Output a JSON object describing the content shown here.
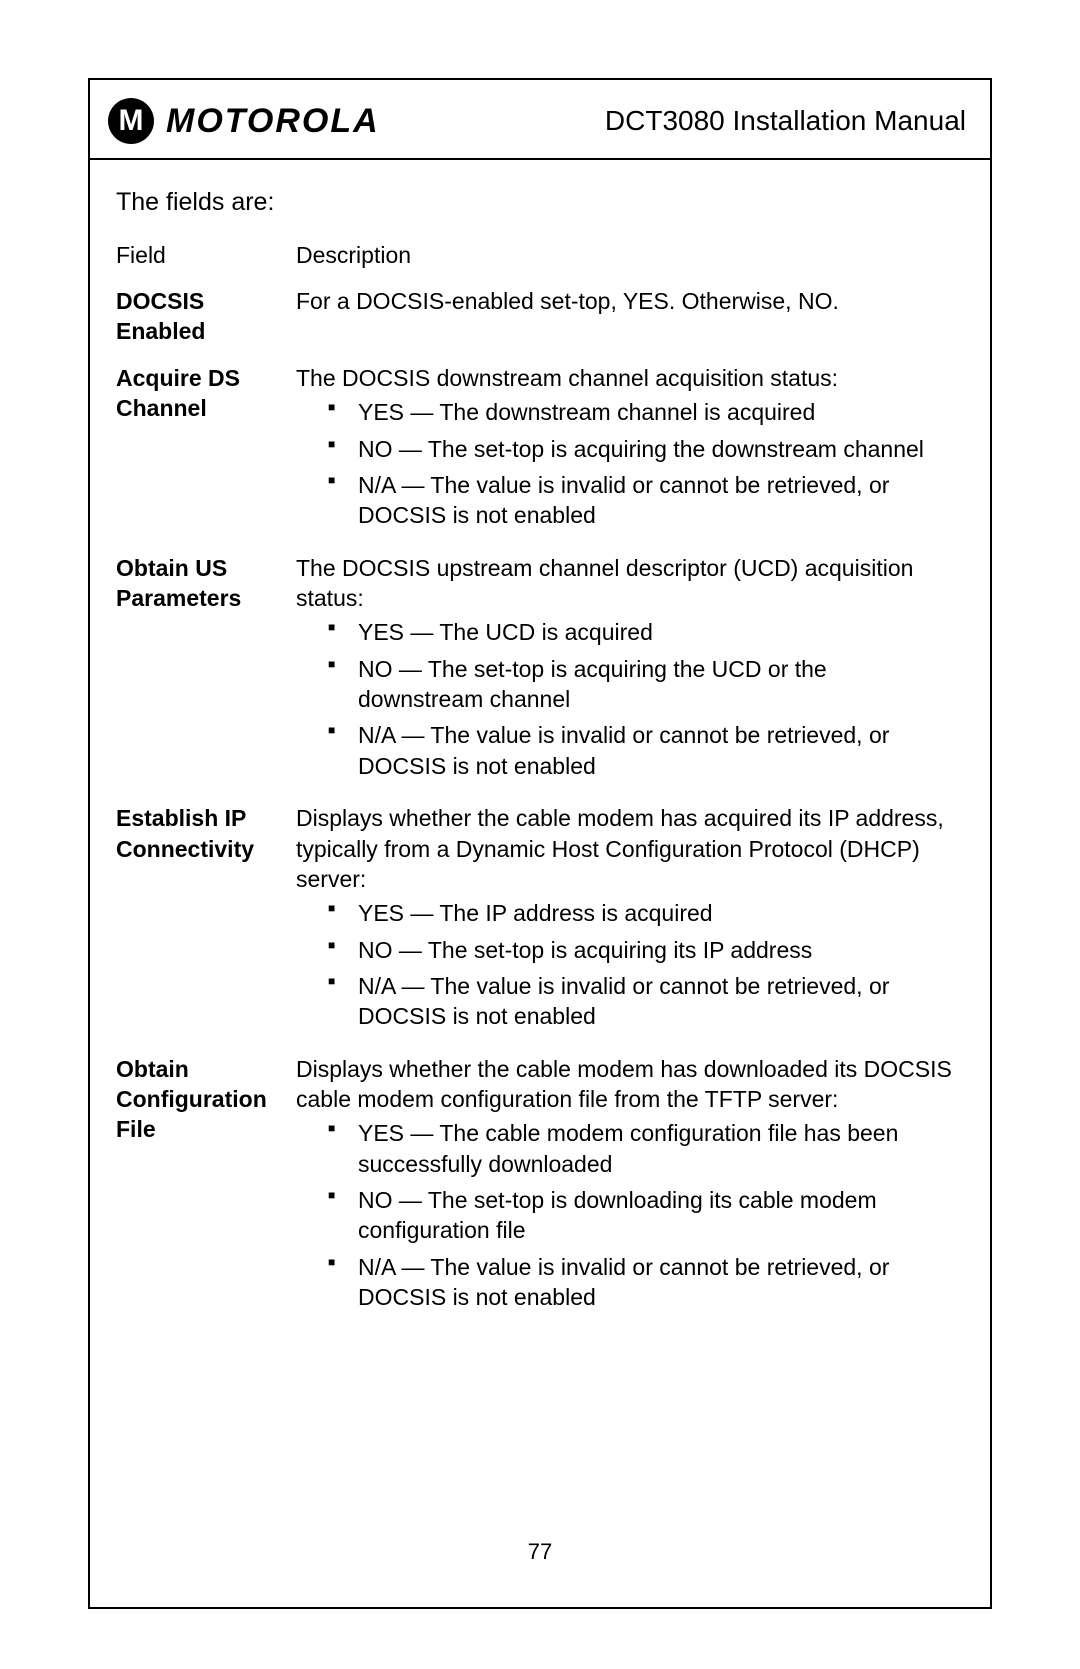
{
  "header": {
    "brand": "MOTOROLA",
    "logo_glyph": "M",
    "doc_title": "DCT3080 Installation Manual"
  },
  "intro": "The fields are:",
  "columns": {
    "field": "Field",
    "description": "Description"
  },
  "rows": [
    {
      "field": "DOCSIS Enabled",
      "desc": "For a DOCSIS-enabled set-top, YES. Otherwise, NO.",
      "bullets": []
    },
    {
      "field": "Acquire DS Channel",
      "desc": "The DOCSIS downstream channel acquisition status:",
      "bullets": [
        "YES — The downstream channel is acquired",
        "NO — The set-top is acquiring the downstream channel",
        "N/A — The value is invalid or cannot be retrieved, or DOCSIS is not enabled"
      ]
    },
    {
      "field": "Obtain US Parameters",
      "desc": "The DOCSIS upstream channel descriptor (UCD) acquisition status:",
      "bullets": [
        "YES — The UCD is acquired",
        "NO — The set-top is acquiring the UCD or the downstream channel",
        "N/A — The value is invalid or cannot be retrieved, or DOCSIS is not enabled"
      ]
    },
    {
      "field": "Establish IP Connectivity",
      "desc": "Displays whether the cable modem has acquired its IP address, typically from a Dynamic Host Configuration Protocol (DHCP) server:",
      "bullets": [
        "YES — The IP address is acquired",
        "NO — The set-top is acquiring its IP address",
        "N/A — The value is invalid or cannot be retrieved, or DOCSIS is not enabled"
      ]
    },
    {
      "field": "Obtain Configuration File",
      "desc": "Displays whether the cable modem has downloaded its DOCSIS cable modem configuration file from the TFTP server:",
      "bullets": [
        "YES — The cable modem configuration file has been successfully downloaded",
        "NO — The set-top is downloading its cable modem configuration file",
        "N/A — The value is invalid or cannot be retrieved, or DOCSIS is not enabled"
      ]
    }
  ],
  "page_number": "77"
}
